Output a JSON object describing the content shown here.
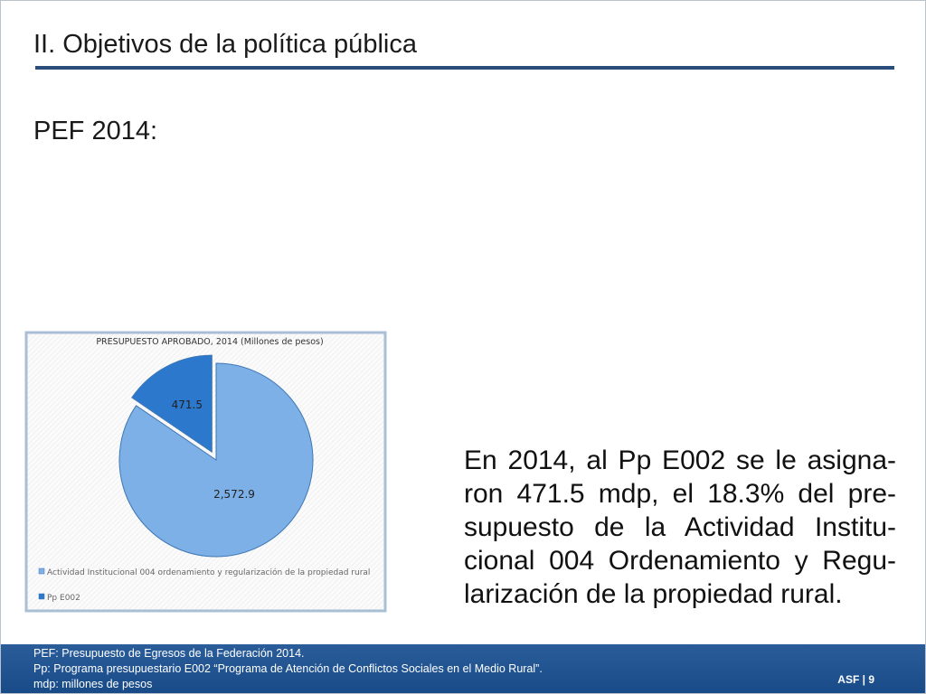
{
  "slide_title": "II. Objetivos de la política pública",
  "subtitle": "PEF 2014:",
  "body_lines": [
    "En 2014, al Pp E002 se le asigna-",
    "ron 471.5 mdp, el 18.3% del pre-",
    "supuesto de la Actividad Institu-",
    "cional 004 Ordenamiento y Regu-",
    "larización de la propiedad rural."
  ],
  "footnotes": [
    "PEF: Presupuesto de Egresos de la Federación 2014.",
    "Pp: Programa presupuestario E002 “Programa de Atención de Conflictos Sociales en el Medio Rural”.",
    "mdp: millones de pesos"
  ],
  "page_label": "ASF | 9",
  "chart_data": {
    "type": "pie",
    "title": "PRESUPUESTO APROBADO, 2014  (Millones de pesos)",
    "categories": [
      "Actividad Institucional 004 ordenamiento y regularización de la propiedad rural",
      "Pp E002"
    ],
    "values": [
      2572.9,
      471.5
    ],
    "value_labels": [
      "2,572.9",
      "471.5"
    ],
    "colors": [
      "#7db0e6",
      "#2b78cc"
    ],
    "exploded": [
      false,
      true
    ]
  }
}
